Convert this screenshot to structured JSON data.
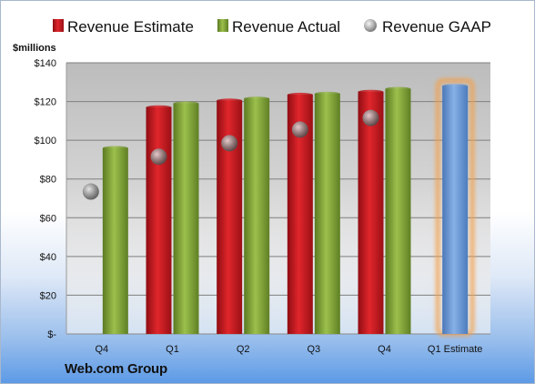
{
  "company_name": "Web.com Group",
  "chart_data": {
    "type": "bar",
    "unit_label": "$millions",
    "categories": [
      "Q4",
      "Q1",
      "Q2",
      "Q3",
      "Q4",
      "Q1 Estimate"
    ],
    "series": [
      {
        "name": "Revenue Estimate",
        "kind": "bar",
        "color": "#c8161d",
        "values": [
          null,
          117,
          120.5,
          123.5,
          125,
          null
        ]
      },
      {
        "name": "Revenue Actual",
        "kind": "bar",
        "color": "#7ea135",
        "values": [
          96,
          119,
          121.5,
          124,
          126.5,
          null
        ]
      },
      {
        "name": "Revenue GAAP",
        "kind": "marker",
        "color": "#9a9a9a",
        "values": [
          73.5,
          91.5,
          98.5,
          105.5,
          111.5,
          null
        ]
      },
      {
        "name": "Q1 Estimate",
        "kind": "bar",
        "color": "#6e9bd6",
        "highlight_color": "#f4a04a",
        "values": [
          null,
          null,
          null,
          null,
          null,
          128
        ]
      }
    ],
    "ylim": [
      0,
      140
    ],
    "yticks": [
      {
        "value": 0,
        "label": "$-"
      },
      {
        "value": 20,
        "label": "$20"
      },
      {
        "value": 40,
        "label": "$40"
      },
      {
        "value": 60,
        "label": "$60"
      },
      {
        "value": 80,
        "label": "$80"
      },
      {
        "value": 100,
        "label": "$100"
      },
      {
        "value": 120,
        "label": "$120"
      },
      {
        "value": 140,
        "label": "$140"
      }
    ],
    "grid": true,
    "legend": {
      "position": "top",
      "entries": [
        "Revenue Estimate",
        "Revenue Actual",
        "Revenue GAAP"
      ]
    }
  }
}
